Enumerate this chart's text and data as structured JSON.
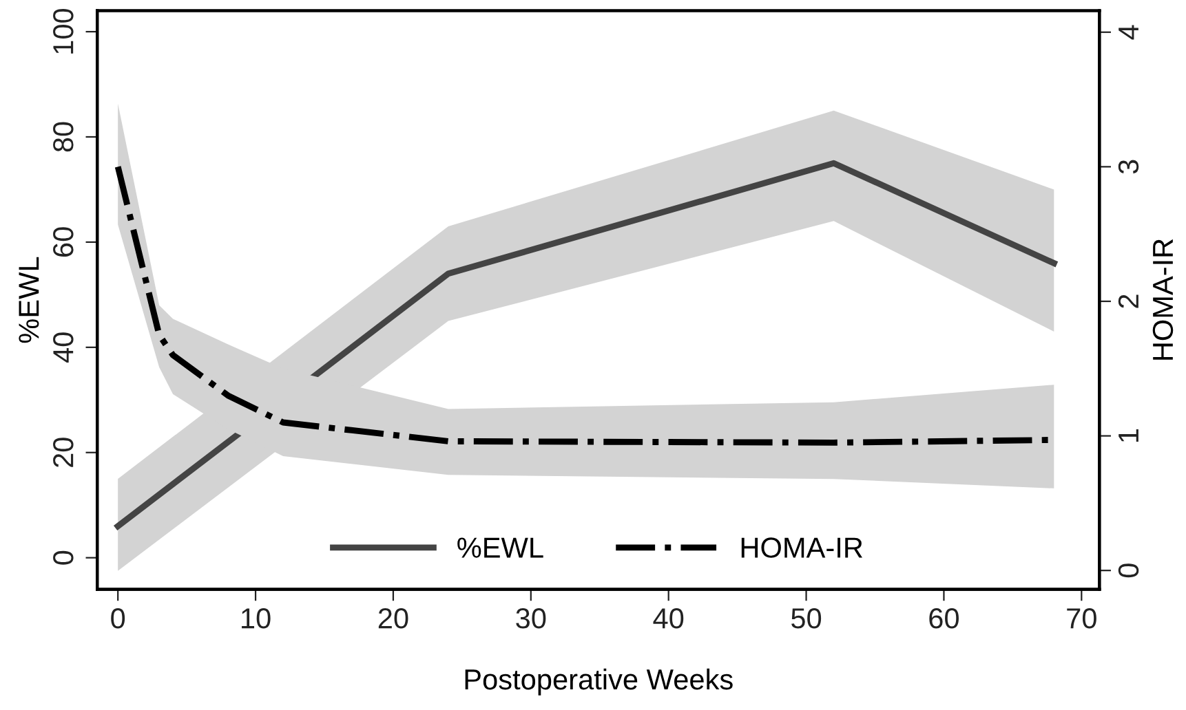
{
  "chart_data": {
    "type": "line",
    "xlabel": "Postoperative Weeks",
    "ylabel": "%EWL",
    "y2label": "HOMA-IR",
    "xlim": [
      -1.5,
      71.3
    ],
    "xticks": [
      0,
      10,
      20,
      30,
      40,
      50,
      60,
      70
    ],
    "ylim": [
      -6,
      104
    ],
    "yticks": [
      0,
      20,
      40,
      60,
      80,
      100
    ],
    "y2lim": [
      -0.14,
      4.16
    ],
    "y2ticks": [
      0,
      1,
      2,
      3,
      4
    ],
    "grid": false,
    "legend": "bottom",
    "marker": "none",
    "series": [
      {
        "name": "%EWL",
        "color": "#444444",
        "line_style": "solid",
        "x": [
          0,
          24,
          52,
          68
        ],
        "values": [
          6,
          54,
          75,
          56
        ],
        "lower": [
          -2.5,
          45,
          64,
          43
        ],
        "upper": [
          15,
          63,
          85,
          70
        ]
      },
      {
        "name": "HOMA-IR",
        "color": "#000000",
        "line_style": "dashdot",
        "axis": "y2",
        "x": [
          0,
          3,
          4,
          8,
          12,
          24,
          52,
          68
        ],
        "values": [
          3.0,
          1.75,
          1.6,
          1.3,
          1.1,
          0.96,
          0.95,
          0.97
        ],
        "lower": [
          2.57,
          1.51,
          1.31,
          1.05,
          0.85,
          0.71,
          0.68,
          0.61
        ],
        "upper": [
          3.47,
          1.97,
          1.87,
          1.68,
          1.5,
          1.2,
          1.25,
          1.38
        ]
      }
    ]
  }
}
